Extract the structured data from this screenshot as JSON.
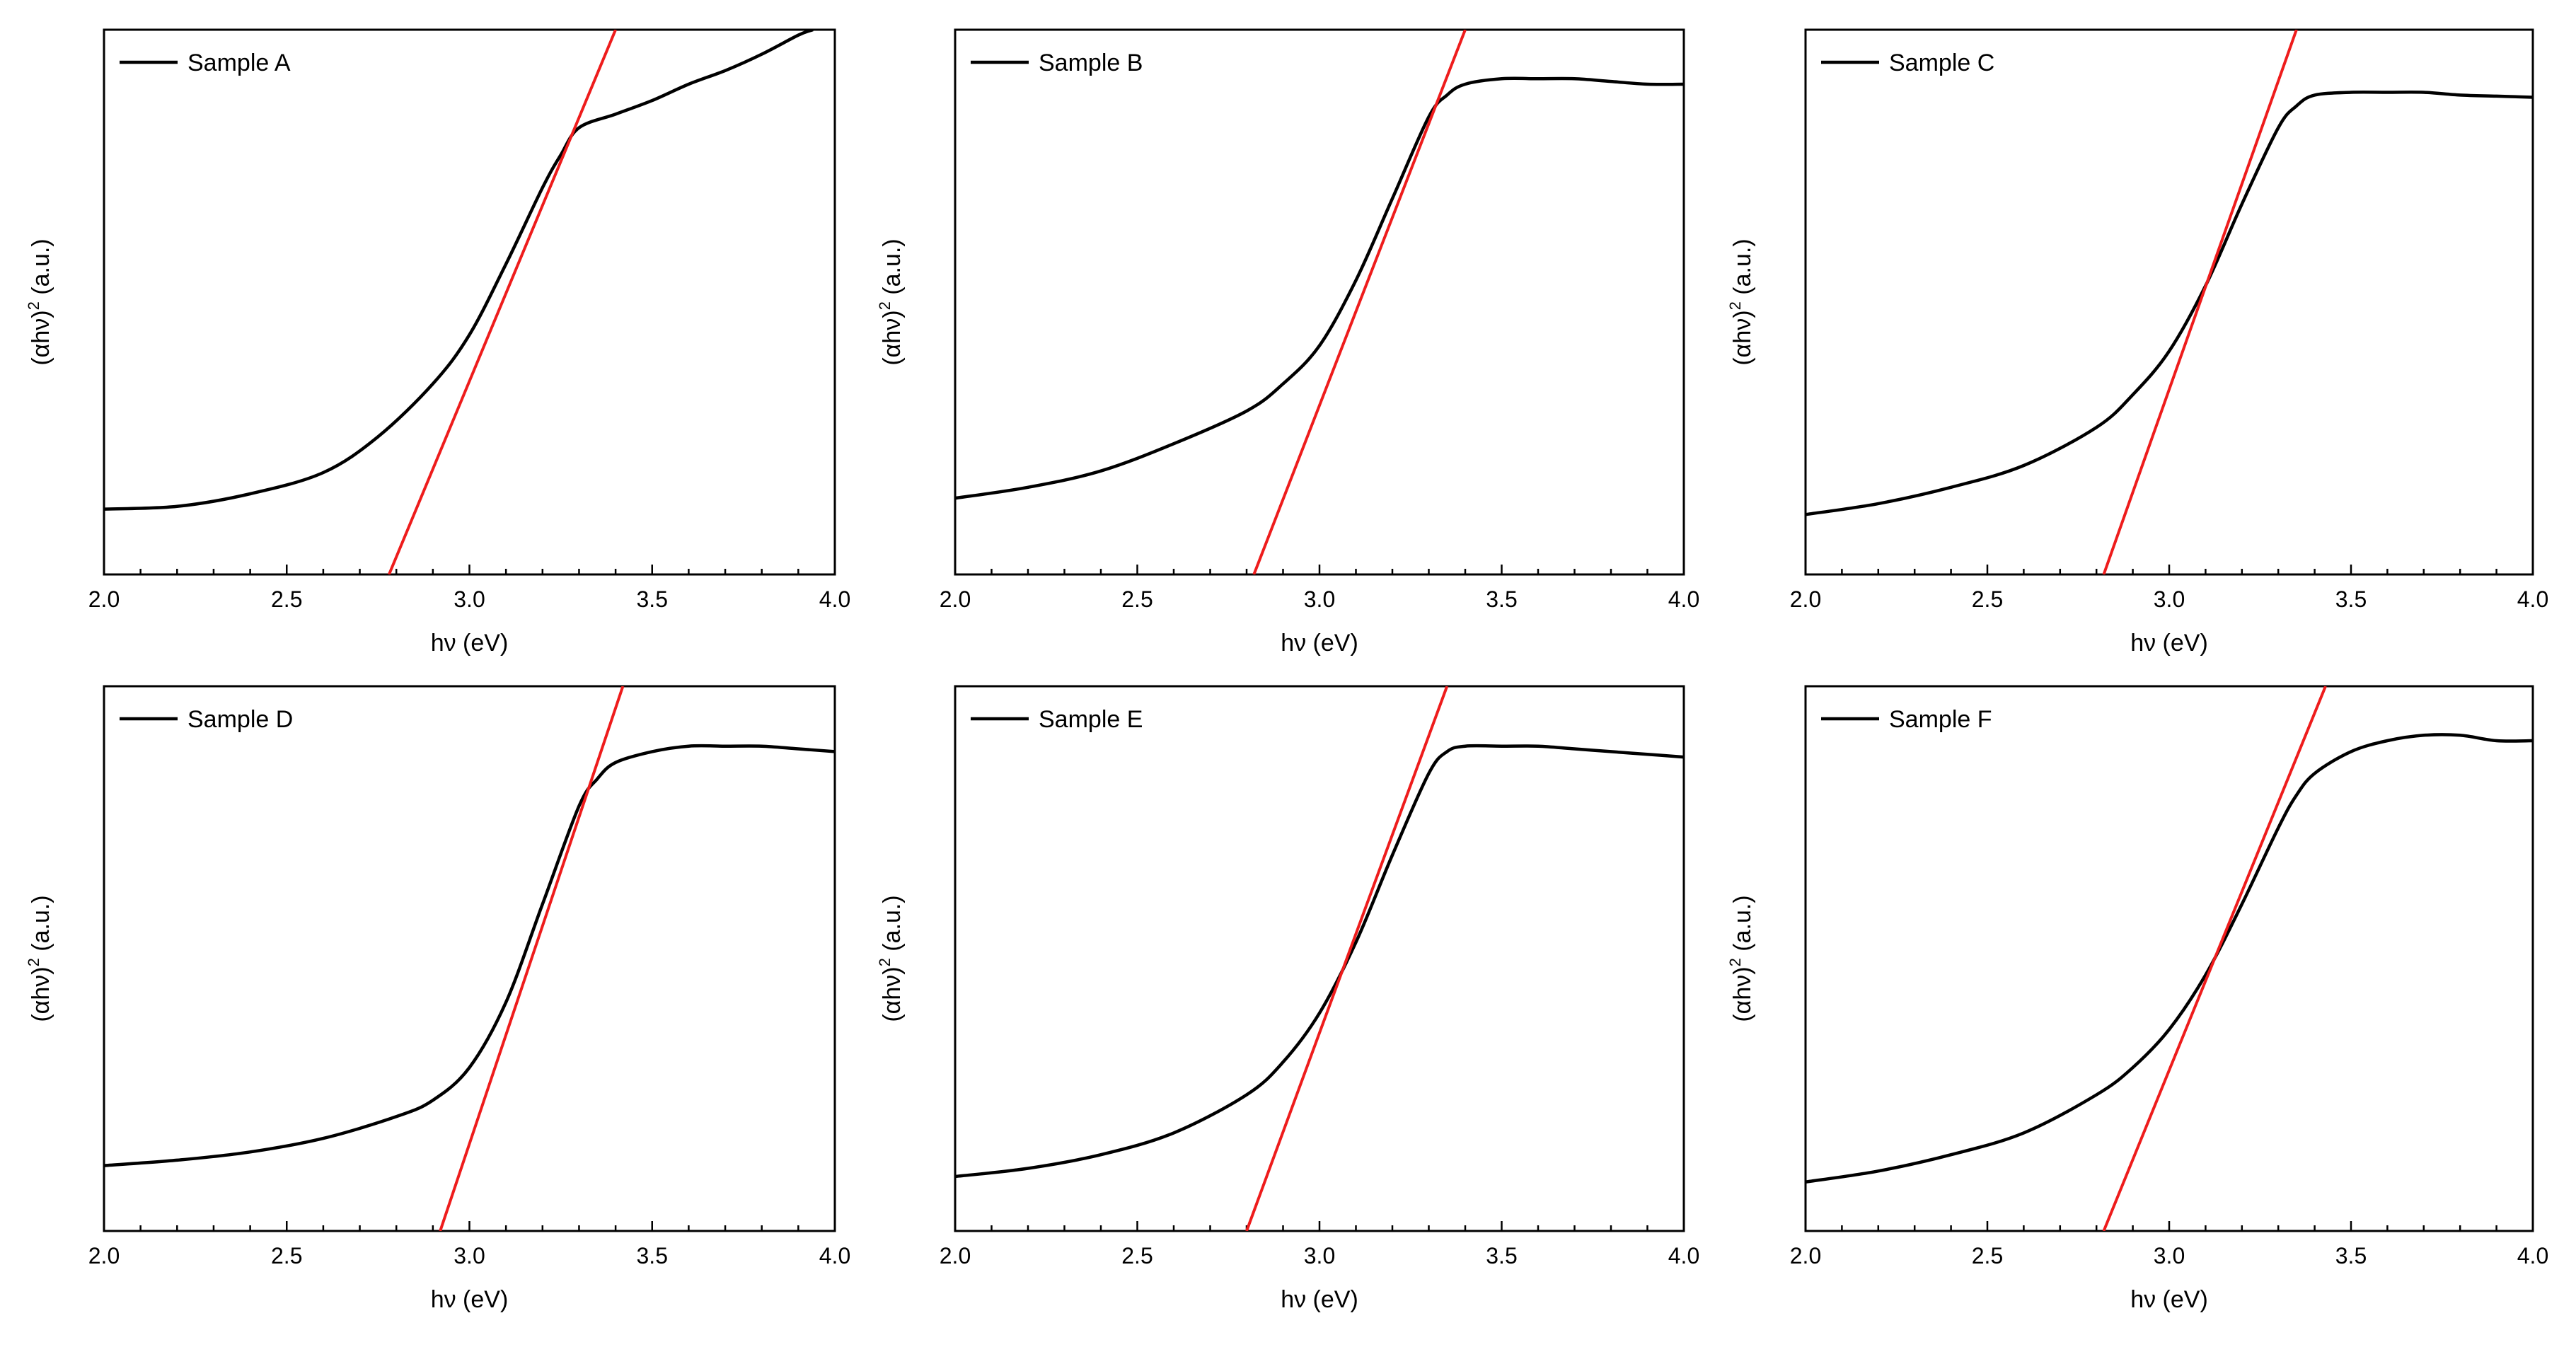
{
  "figure": {
    "xlabel": "hν (eV)",
    "ylabel_prefix": "(αhν)",
    "ylabel_exponent": "2",
    "ylabel_suffix": " (a.u.)"
  },
  "colors": {
    "curve": "#000000",
    "fit": "#ee1c1c",
    "frame": "#000000"
  },
  "chart_data": [
    {
      "type": "line",
      "title": "Sample A",
      "legend": "Sample A",
      "xlabel": "hν (eV)",
      "ylabel": "(αhν)2 (a.u.)",
      "xlim": [
        2.0,
        4.0
      ],
      "ylim": [
        0,
        1
      ],
      "xticks": [
        "2.0",
        "2.5",
        "3.0",
        "3.5",
        "4.0"
      ],
      "series": [
        {
          "name": "Sample A",
          "x": [
            2.0,
            2.2,
            2.4,
            2.6,
            2.75,
            2.9,
            3.0,
            3.1,
            3.2,
            3.25,
            3.3,
            3.4,
            3.5,
            3.6,
            3.7,
            3.8,
            3.9,
            3.94
          ],
          "y": [
            0.12,
            0.125,
            0.148,
            0.187,
            0.253,
            0.35,
            0.44,
            0.57,
            0.71,
            0.77,
            0.82,
            0.845,
            0.87,
            0.9,
            0.925,
            0.955,
            0.99,
            1.0
          ]
        }
      ],
      "fit_line": {
        "name": "linear fit",
        "x": [
          2.78,
          3.4
        ],
        "y": [
          0.0,
          1.0
        ]
      }
    },
    {
      "type": "line",
      "title": "Sample B",
      "legend": "Sample B",
      "xlabel": "hν (eV)",
      "ylabel": "(αhν)2 (a.u.)",
      "xlim": [
        2.0,
        4.0
      ],
      "ylim": [
        0,
        1
      ],
      "xticks": [
        "2.0",
        "2.5",
        "3.0",
        "3.5",
        "4.0"
      ],
      "series": [
        {
          "name": "Sample B",
          "x": [
            2.0,
            2.2,
            2.4,
            2.6,
            2.8,
            2.9,
            3.0,
            3.1,
            3.2,
            3.3,
            3.35,
            3.4,
            3.5,
            3.6,
            3.7,
            3.8,
            3.9,
            4.0
          ],
          "y": [
            0.14,
            0.16,
            0.19,
            0.24,
            0.3,
            0.35,
            0.42,
            0.54,
            0.69,
            0.84,
            0.88,
            0.9,
            0.91,
            0.91,
            0.91,
            0.905,
            0.9,
            0.9
          ]
        }
      ],
      "fit_line": {
        "name": "linear fit",
        "x": [
          2.82,
          3.4
        ],
        "y": [
          0.0,
          1.0
        ]
      }
    },
    {
      "type": "line",
      "title": "Sample C",
      "legend": "Sample C",
      "xlabel": "hν (eV)",
      "ylabel": "(αhν)2 (a.u.)",
      "xlim": [
        2.0,
        4.0
      ],
      "ylim": [
        0,
        1
      ],
      "xticks": [
        "2.0",
        "2.5",
        "3.0",
        "3.5",
        "4.0"
      ],
      "series": [
        {
          "name": "Sample C",
          "x": [
            2.0,
            2.2,
            2.4,
            2.6,
            2.8,
            2.9,
            3.0,
            3.1,
            3.2,
            3.3,
            3.35,
            3.4,
            3.5,
            3.6,
            3.7,
            3.8,
            3.9,
            4.0
          ],
          "y": [
            0.11,
            0.13,
            0.16,
            0.2,
            0.27,
            0.33,
            0.41,
            0.53,
            0.68,
            0.82,
            0.86,
            0.88,
            0.885,
            0.885,
            0.885,
            0.88,
            0.878,
            0.876
          ]
        }
      ],
      "fit_line": {
        "name": "linear fit",
        "x": [
          2.82,
          3.35
        ],
        "y": [
          0.0,
          1.0
        ]
      }
    },
    {
      "type": "line",
      "title": "Sample D",
      "legend": "Sample D",
      "xlabel": "hν (eV)",
      "ylabel": "(αhν)2 (a.u.)",
      "xlim": [
        2.0,
        4.0
      ],
      "ylim": [
        0,
        1
      ],
      "xticks": [
        "2.0",
        "2.5",
        "3.0",
        "3.5",
        "4.0"
      ],
      "series": [
        {
          "name": "Sample D",
          "x": [
            2.0,
            2.2,
            2.4,
            2.6,
            2.8,
            2.9,
            3.0,
            3.1,
            3.2,
            3.3,
            3.35,
            3.4,
            3.5,
            3.6,
            3.7,
            3.8,
            3.9,
            4.0
          ],
          "y": [
            0.12,
            0.13,
            0.145,
            0.17,
            0.21,
            0.24,
            0.3,
            0.42,
            0.6,
            0.78,
            0.83,
            0.86,
            0.88,
            0.89,
            0.89,
            0.89,
            0.885,
            0.88
          ]
        }
      ],
      "fit_line": {
        "name": "linear fit",
        "x": [
          2.92,
          3.42
        ],
        "y": [
          0.0,
          1.0
        ]
      }
    },
    {
      "type": "line",
      "title": "Sample E",
      "legend": "Sample E",
      "xlabel": "hν (eV)",
      "ylabel": "(αhν)2 (a.u.)",
      "xlim": [
        2.0,
        4.0
      ],
      "ylim": [
        0,
        1
      ],
      "xticks": [
        "2.0",
        "2.5",
        "3.0",
        "3.5",
        "4.0"
      ],
      "series": [
        {
          "name": "Sample E",
          "x": [
            2.0,
            2.2,
            2.4,
            2.6,
            2.8,
            2.9,
            3.0,
            3.1,
            3.2,
            3.3,
            3.35,
            3.4,
            3.5,
            3.6,
            3.7,
            3.8,
            3.9,
            4.0
          ],
          "y": [
            0.1,
            0.115,
            0.14,
            0.18,
            0.25,
            0.31,
            0.4,
            0.53,
            0.69,
            0.84,
            0.88,
            0.89,
            0.89,
            0.89,
            0.885,
            0.88,
            0.875,
            0.87
          ]
        }
      ],
      "fit_line": {
        "name": "linear fit",
        "x": [
          2.8,
          3.35
        ],
        "y": [
          0.0,
          1.0
        ]
      }
    },
    {
      "type": "line",
      "title": "Sample F",
      "legend": "Sample F",
      "xlabel": "hν (eV)",
      "ylabel": "(αhν)2 (a.u.)",
      "xlim": [
        2.0,
        4.0
      ],
      "ylim": [
        0,
        1
      ],
      "xticks": [
        "2.0",
        "2.5",
        "3.0",
        "3.5",
        "4.0"
      ],
      "series": [
        {
          "name": "Sample F",
          "x": [
            2.0,
            2.2,
            2.4,
            2.6,
            2.8,
            2.9,
            3.0,
            3.1,
            3.2,
            3.3,
            3.35,
            3.4,
            3.5,
            3.6,
            3.7,
            3.8,
            3.9,
            4.0
          ],
          "y": [
            0.09,
            0.11,
            0.14,
            0.18,
            0.25,
            0.3,
            0.37,
            0.47,
            0.6,
            0.74,
            0.8,
            0.84,
            0.88,
            0.9,
            0.91,
            0.91,
            0.9,
            0.9
          ]
        }
      ],
      "fit_line": {
        "name": "linear fit",
        "x": [
          2.82,
          3.43
        ],
        "y": [
          0.0,
          1.0
        ]
      }
    }
  ]
}
